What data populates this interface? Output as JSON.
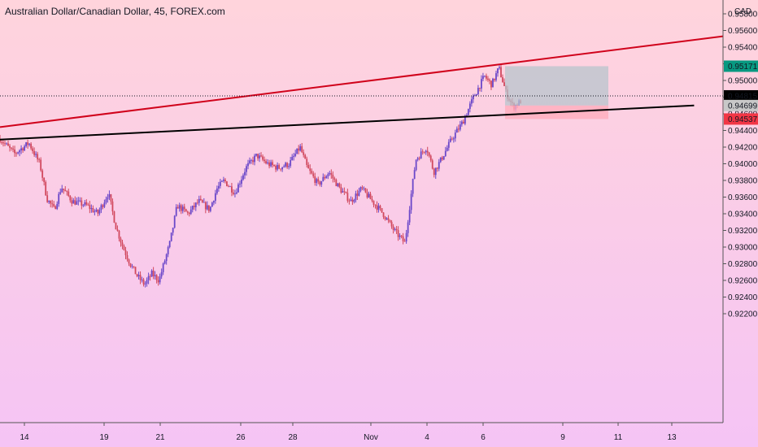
{
  "chart_title": "Australian Dollar/Canadian Dollar, 45, FOREX.com",
  "currency": "CAD",
  "colors": {
    "bg_top": "#ffd4dc",
    "bg_bottom": "#f5c4f5",
    "candle": "#6a47c9",
    "candle_alt": "#d1485e",
    "resistance": "#d0021b",
    "support": "#000000",
    "profit_zone": "#b7c4cc",
    "loss_zone": "#ffadbd"
  },
  "price_ticks": [
    "0.95800",
    "0.95600",
    "0.95400",
    "0.95200",
    "0.95000",
    "0.94800",
    "0.94600",
    "0.94400",
    "0.94200",
    "0.94000",
    "0.93800",
    "0.93600",
    "0.93400",
    "0.93200",
    "0.93000",
    "0.92800",
    "0.92600",
    "0.92400",
    "0.92200"
  ],
  "price_labels": [
    {
      "text": "0.95171",
      "price": 0.95171,
      "bg": "#089981",
      "fg": "#ffffff"
    },
    {
      "text": "0.94815",
      "price": 0.94815,
      "bg": "#000000",
      "fg": "#ffffff"
    },
    {
      "text": "0.94699",
      "price": 0.94699,
      "bg": "#c8c8c8",
      "fg": "#131722"
    },
    {
      "text": "0.94537",
      "price": 0.94537,
      "bg": "#f23645",
      "fg": "#ffffff"
    }
  ],
  "date_ticks": [
    "14",
    "19",
    "21",
    "26",
    "28",
    "Nov",
    "4",
    "6",
    "9",
    "11",
    "13"
  ],
  "chart_data": {
    "type": "candlestick",
    "series": "AUDCAD 45m",
    "price_range": [
      0.922,
      0.9585
    ],
    "path_points": [
      [
        0,
        0.943
      ],
      [
        0.02,
        0.9412
      ],
      [
        0.04,
        0.9425
      ],
      [
        0.055,
        0.94
      ],
      [
        0.065,
        0.9358
      ],
      [
        0.075,
        0.9345
      ],
      [
        0.085,
        0.9372
      ],
      [
        0.1,
        0.9355
      ],
      [
        0.12,
        0.935
      ],
      [
        0.135,
        0.934
      ],
      [
        0.15,
        0.9365
      ],
      [
        0.16,
        0.9325
      ],
      [
        0.17,
        0.93
      ],
      [
        0.18,
        0.928
      ],
      [
        0.19,
        0.9265
      ],
      [
        0.2,
        0.9255
      ],
      [
        0.21,
        0.9268
      ],
      [
        0.22,
        0.926
      ],
      [
        0.235,
        0.9305
      ],
      [
        0.245,
        0.935
      ],
      [
        0.26,
        0.934
      ],
      [
        0.275,
        0.9355
      ],
      [
        0.29,
        0.9345
      ],
      [
        0.3,
        0.937
      ],
      [
        0.31,
        0.938
      ],
      [
        0.325,
        0.9365
      ],
      [
        0.34,
        0.9395
      ],
      [
        0.355,
        0.941
      ],
      [
        0.37,
        0.94
      ],
      [
        0.385,
        0.9395
      ],
      [
        0.4,
        0.94
      ],
      [
        0.415,
        0.942
      ],
      [
        0.425,
        0.9395
      ],
      [
        0.44,
        0.9375
      ],
      [
        0.455,
        0.939
      ],
      [
        0.47,
        0.937
      ],
      [
        0.485,
        0.9355
      ],
      [
        0.5,
        0.937
      ],
      [
        0.515,
        0.9355
      ],
      [
        0.53,
        0.934
      ],
      [
        0.545,
        0.932
      ],
      [
        0.56,
        0.9305
      ],
      [
        0.575,
        0.9405
      ],
      [
        0.59,
        0.942
      ],
      [
        0.6,
        0.939
      ],
      [
        0.61,
        0.9405
      ],
      [
        0.625,
        0.943
      ],
      [
        0.64,
        0.945
      ],
      [
        0.655,
        0.948
      ],
      [
        0.67,
        0.9505
      ],
      [
        0.68,
        0.9495
      ],
      [
        0.69,
        0.9515
      ],
      [
        0.7,
        0.9485
      ],
      [
        0.71,
        0.9468
      ],
      [
        0.72,
        0.9475
      ]
    ],
    "resistance_line": {
      "from": [
        0,
        0.9444
      ],
      "to": [
        1.0,
        0.9553
      ]
    },
    "support_line": {
      "from": [
        0,
        0.9429
      ],
      "to": [
        0.96,
        0.947
      ]
    },
    "position": {
      "entry": 0.94699,
      "target": 0.95171,
      "stop": 0.94537
    }
  }
}
